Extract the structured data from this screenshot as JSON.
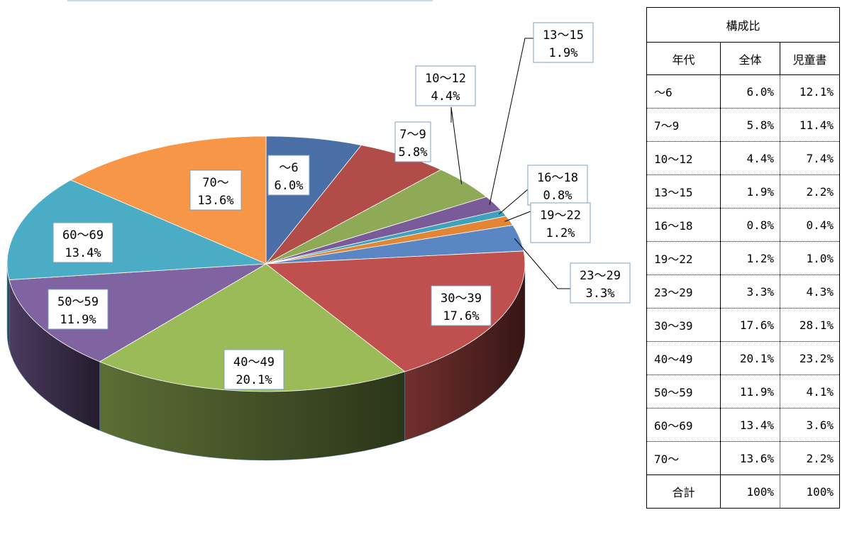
{
  "chart_data": {
    "type": "pie",
    "title": "",
    "series_name": "全体",
    "slices": [
      {
        "label": "～6",
        "value": 6.0,
        "value_label": "6.0%",
        "color": "#4a6fa6"
      },
      {
        "label": "7～9",
        "value": 5.8,
        "value_label": "5.8%",
        "color": "#b14c48"
      },
      {
        "label": "10～12",
        "value": 4.4,
        "value_label": "4.4%",
        "color": "#8faa56"
      },
      {
        "label": "13～15",
        "value": 1.9,
        "value_label": "1.9%",
        "color": "#7a5b9a"
      },
      {
        "label": "16～18",
        "value": 0.8,
        "value_label": "0.8%",
        "color": "#3fa1bb"
      },
      {
        "label": "19～22",
        "value": 1.2,
        "value_label": "1.2%",
        "color": "#e28636"
      },
      {
        "label": "23～29",
        "value": 3.3,
        "value_label": "3.3%",
        "color": "#5a86c4"
      },
      {
        "label": "30～39",
        "value": 17.6,
        "value_label": "17.6%",
        "color": "#c0504d"
      },
      {
        "label": "40～49",
        "value": 20.1,
        "value_label": "20.1%",
        "color": "#9bbb59"
      },
      {
        "label": "50～59",
        "value": 11.9,
        "value_label": "11.9%",
        "color": "#8064a2"
      },
      {
        "label": "60～69",
        "value": 13.4,
        "value_label": "13.4%",
        "color": "#4bacc6"
      },
      {
        "label": "70～",
        "value": 13.6,
        "value_label": "13.6%",
        "color": "#f79646"
      }
    ]
  },
  "table": {
    "title": "構成比",
    "headers": [
      "年代",
      "全体",
      "児童書"
    ],
    "rows": [
      {
        "age": "～6",
        "all": "6.0%",
        "kids": "12.1%"
      },
      {
        "age": "7～9",
        "all": "5.8%",
        "kids": "11.4%"
      },
      {
        "age": "10～12",
        "all": "4.4%",
        "kids": "7.4%"
      },
      {
        "age": "13～15",
        "all": "1.9%",
        "kids": "2.2%"
      },
      {
        "age": "16～18",
        "all": "0.8%",
        "kids": "0.4%"
      },
      {
        "age": "19～22",
        "all": "1.2%",
        "kids": "1.0%"
      },
      {
        "age": "23～29",
        "all": "3.3%",
        "kids": "4.3%"
      },
      {
        "age": "30～39",
        "all": "17.6%",
        "kids": "28.1%"
      },
      {
        "age": "40～49",
        "all": "20.1%",
        "kids": "23.2%"
      },
      {
        "age": "50～59",
        "all": "11.9%",
        "kids": "4.1%"
      },
      {
        "age": "60～69",
        "all": "13.4%",
        "kids": "3.6%"
      },
      {
        "age": "70～",
        "all": "13.6%",
        "kids": "2.2%"
      }
    ],
    "total": {
      "label": "合計",
      "all": "100%",
      "kids": "100%"
    }
  }
}
